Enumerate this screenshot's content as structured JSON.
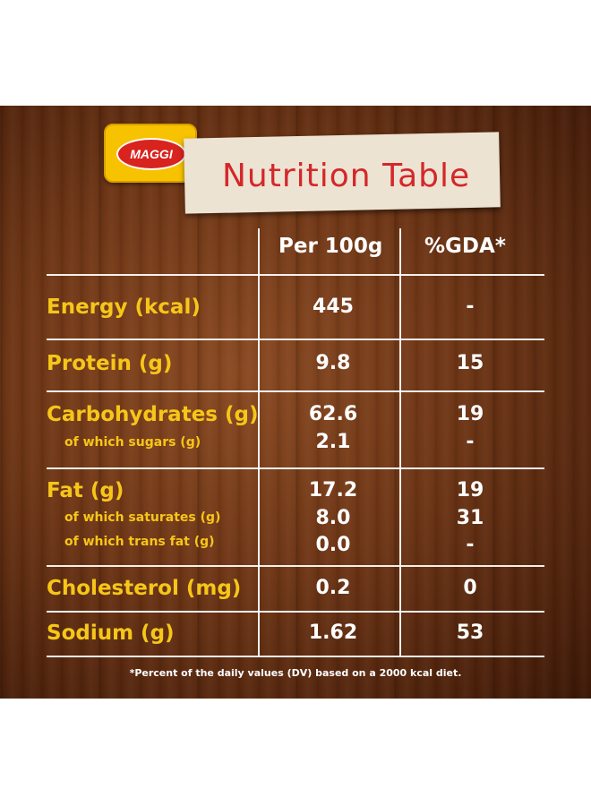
{
  "brand": {
    "logo_text": "MAGGI"
  },
  "title": "Nutrition Table",
  "columns": {
    "per100": "Per 100g",
    "gda": "%GDA*"
  },
  "rows": {
    "energy": {
      "label": "Energy (kcal)",
      "per100": "445",
      "gda": "-"
    },
    "protein": {
      "label": "Protein (g)",
      "per100": "9.8",
      "gda": "15"
    },
    "carbs": {
      "label": "Carbohydrates (g)",
      "per100": "62.6",
      "gda": "19"
    },
    "sugars": {
      "label": "of which sugars (g)",
      "per100": "2.1",
      "gda": "-"
    },
    "fat": {
      "label": "Fat (g)",
      "per100": "17.2",
      "gda": "19"
    },
    "saturates": {
      "label": "of which saturates (g)",
      "per100": "8.0",
      "gda": "31"
    },
    "transfat": {
      "label": "of which trans fat (g)",
      "per100": "0.0",
      "gda": "-"
    },
    "cholesterol": {
      "label": "Cholesterol (mg)",
      "per100": "0.2",
      "gda": "0"
    },
    "sodium": {
      "label": "Sodium (g)",
      "per100": "1.62",
      "gda": "53"
    }
  },
  "footnote": "*Percent of the daily values (DV) based on a 2000 kcal diet.",
  "colors": {
    "label": "#f6c619",
    "value": "#ffffff",
    "title": "#d4272a",
    "logo_bg": "#f7c200",
    "logo_oval": "#d8231f"
  }
}
